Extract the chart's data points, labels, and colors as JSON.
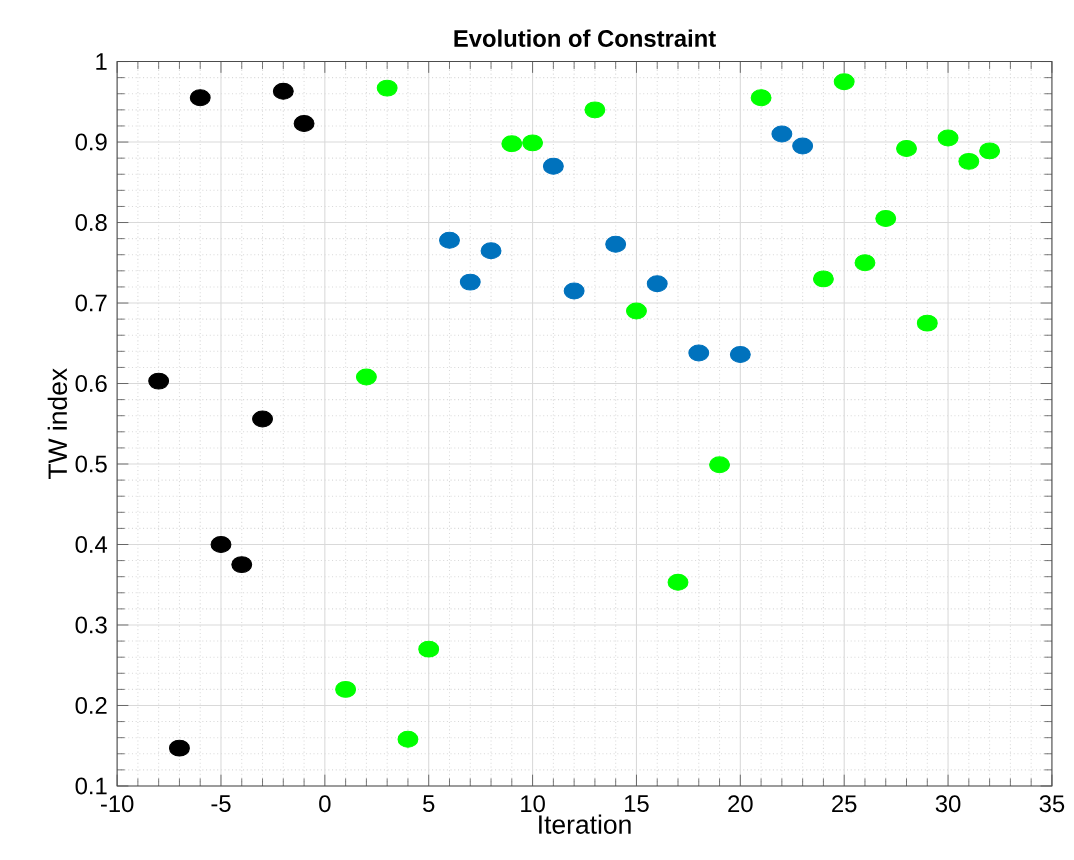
{
  "chart_data": {
    "type": "scatter",
    "title": "Evolution of Constraint",
    "xlabel": "Iteration",
    "ylabel": "TW index",
    "xlim": [
      -10,
      35
    ],
    "ylim": [
      0.1,
      1
    ],
    "xticks": [
      -10,
      -5,
      0,
      5,
      10,
      15,
      20,
      25,
      30,
      35
    ],
    "yticks": [
      0.1,
      0.2,
      0.3,
      0.4,
      0.5,
      0.6,
      0.7,
      0.8,
      0.9,
      1
    ],
    "grid": true,
    "marker": "circle",
    "series": [
      {
        "color": "#000000",
        "x": [
          -8,
          -7,
          -6,
          -5,
          -4,
          -3,
          -2,
          -1
        ],
        "values": [
          0.603,
          0.147,
          0.955,
          0.4,
          0.375,
          0.556,
          0.963,
          0.923
        ]
      },
      {
        "color": "#00ff00",
        "x": [
          1,
          2,
          3,
          4,
          5,
          9,
          10,
          13,
          15,
          17,
          19,
          21,
          24,
          25,
          26,
          27,
          28,
          29,
          30,
          31,
          32
        ],
        "values": [
          0.22,
          0.608,
          0.967,
          0.158,
          0.27,
          0.898,
          0.899,
          0.94,
          0.69,
          0.353,
          0.499,
          0.955,
          0.73,
          0.975,
          0.75,
          0.805,
          0.892,
          0.675,
          0.905,
          0.876,
          0.889
        ]
      },
      {
        "color": "#0072bd",
        "x": [
          6,
          7,
          8,
          11,
          12,
          14,
          16,
          18,
          20,
          22,
          23
        ],
        "values": [
          0.778,
          0.726,
          0.765,
          0.87,
          0.715,
          0.773,
          0.724,
          0.638,
          0.636,
          0.91,
          0.895
        ]
      }
    ]
  }
}
